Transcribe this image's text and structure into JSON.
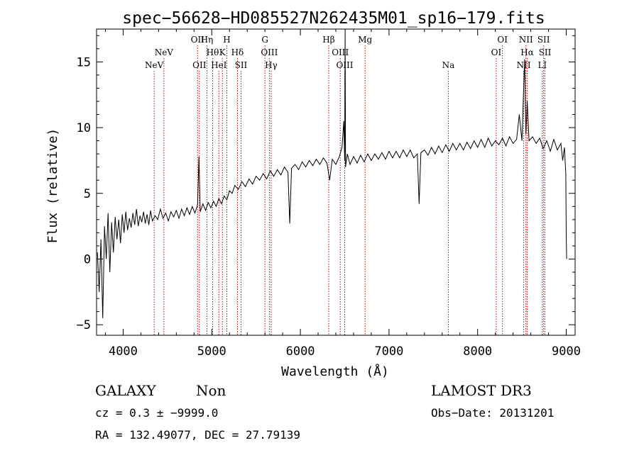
{
  "chart_data": {
    "type": "line",
    "title": "spec−56628−HD085527N262435M01_sp16−179.fits",
    "xlabel": "Wavelength (Å)",
    "ylabel": "Flux (relative)",
    "xlim": [
      3700,
      9100
    ],
    "ylim": [
      -5.8,
      17.5
    ],
    "x_ticks": [
      4000,
      5000,
      6000,
      7000,
      8000,
      9000
    ],
    "x_tick_labels": [
      "4000",
      "5000",
      "6000",
      "7000",
      "8000",
      "9000"
    ],
    "y_ticks": [
      -5,
      0,
      5,
      10,
      15
    ],
    "y_tick_labels": [
      "−5",
      "0",
      "5",
      "10",
      "15"
    ],
    "grid": false,
    "line_color": "#000000",
    "marker_color": "#cc0000",
    "series": [
      {
        "points": [
          [
            3710,
            0.5
          ],
          [
            3730,
            -2.5
          ],
          [
            3750,
            1.5
          ],
          [
            3770,
            -4.5
          ],
          [
            3790,
            2.5
          ],
          [
            3810,
            0.0
          ],
          [
            3830,
            3.5
          ],
          [
            3850,
            -1.0
          ],
          [
            3870,
            2.8
          ],
          [
            3890,
            0.5
          ],
          [
            3910,
            3.2
          ],
          [
            3930,
            1.5
          ],
          [
            3950,
            3.0
          ],
          [
            3970,
            1.2
          ],
          [
            3990,
            3.4
          ],
          [
            4010,
            2.0
          ],
          [
            4030,
            3.6
          ],
          [
            4050,
            2.2
          ],
          [
            4070,
            3.1
          ],
          [
            4090,
            2.4
          ],
          [
            4110,
            3.5
          ],
          [
            4130,
            2.6
          ],
          [
            4150,
            3.8
          ],
          [
            4170,
            2.5
          ],
          [
            4190,
            3.3
          ],
          [
            4210,
            2.8
          ],
          [
            4230,
            3.6
          ],
          [
            4250,
            2.7
          ],
          [
            4270,
            3.4
          ],
          [
            4290,
            2.6
          ],
          [
            4310,
            3.7
          ],
          [
            4330,
            2.9
          ],
          [
            4360,
            3.3
          ],
          [
            4390,
            3.0
          ],
          [
            4420,
            3.8
          ],
          [
            4450,
            3.1
          ],
          [
            4480,
            3.5
          ],
          [
            4510,
            2.9
          ],
          [
            4540,
            3.6
          ],
          [
            4570,
            3.2
          ],
          [
            4600,
            3.7
          ],
          [
            4630,
            3.1
          ],
          [
            4660,
            3.8
          ],
          [
            4690,
            3.3
          ],
          [
            4720,
            3.9
          ],
          [
            4750,
            3.4
          ],
          [
            4780,
            4.0
          ],
          [
            4810,
            3.5
          ],
          [
            4840,
            4.1
          ],
          [
            4855,
            7.8
          ],
          [
            4870,
            3.6
          ],
          [
            4900,
            4.2
          ],
          [
            4930,
            3.7
          ],
          [
            4960,
            4.3
          ],
          [
            4990,
            3.9
          ],
          [
            5020,
            4.4
          ],
          [
            5050,
            4.0
          ],
          [
            5080,
            4.6
          ],
          [
            5110,
            4.2
          ],
          [
            5140,
            4.8
          ],
          [
            5170,
            4.5
          ],
          [
            5200,
            5.2
          ],
          [
            5230,
            5.0
          ],
          [
            5260,
            5.6
          ],
          [
            5300,
            5.3
          ],
          [
            5340,
            5.9
          ],
          [
            5380,
            5.5
          ],
          [
            5420,
            6.1
          ],
          [
            5460,
            5.7
          ],
          [
            5500,
            6.3
          ],
          [
            5540,
            6.0
          ],
          [
            5580,
            6.5
          ],
          [
            5620,
            6.1
          ],
          [
            5660,
            6.7
          ],
          [
            5700,
            6.3
          ],
          [
            5740,
            6.8
          ],
          [
            5780,
            6.4
          ],
          [
            5820,
            7.0
          ],
          [
            5860,
            6.6
          ],
          [
            5880,
            2.7
          ],
          [
            5900,
            6.9
          ],
          [
            5940,
            7.2
          ],
          [
            5980,
            6.8
          ],
          [
            6020,
            7.4
          ],
          [
            6060,
            7.0
          ],
          [
            6100,
            7.5
          ],
          [
            6140,
            7.1
          ],
          [
            6180,
            7.6
          ],
          [
            6220,
            7.2
          ],
          [
            6260,
            7.7
          ],
          [
            6300,
            7.3
          ],
          [
            6330,
            6.0
          ],
          [
            6360,
            7.6
          ],
          [
            6400,
            7.2
          ],
          [
            6440,
            7.8
          ],
          [
            6470,
            8.5
          ],
          [
            6490,
            10.5
          ],
          [
            6500,
            7.5
          ],
          [
            6505,
            17.5
          ],
          [
            6510,
            7.0
          ],
          [
            6530,
            8.0
          ],
          [
            6560,
            7.2
          ],
          [
            6600,
            7.8
          ],
          [
            6640,
            7.3
          ],
          [
            6680,
            7.9
          ],
          [
            6720,
            7.4
          ],
          [
            6760,
            8.0
          ],
          [
            6800,
            7.5
          ],
          [
            6840,
            8.0
          ],
          [
            6880,
            7.6
          ],
          [
            6920,
            8.1
          ],
          [
            6960,
            7.6
          ],
          [
            7000,
            8.2
          ],
          [
            7040,
            7.7
          ],
          [
            7080,
            8.2
          ],
          [
            7120,
            7.7
          ],
          [
            7160,
            8.3
          ],
          [
            7200,
            7.8
          ],
          [
            7240,
            8.3
          ],
          [
            7280,
            7.7
          ],
          [
            7320,
            8.0
          ],
          [
            7340,
            4.2
          ],
          [
            7360,
            8.1
          ],
          [
            7400,
            8.3
          ],
          [
            7440,
            7.9
          ],
          [
            7480,
            8.5
          ],
          [
            7520,
            8.0
          ],
          [
            7560,
            8.6
          ],
          [
            7600,
            8.1
          ],
          [
            7640,
            8.7
          ],
          [
            7680,
            8.2
          ],
          [
            7720,
            8.8
          ],
          [
            7760,
            8.3
          ],
          [
            7800,
            8.8
          ],
          [
            7840,
            8.3
          ],
          [
            7880,
            8.9
          ],
          [
            7920,
            8.4
          ],
          [
            7960,
            9.0
          ],
          [
            8000,
            8.5
          ],
          [
            8040,
            9.1
          ],
          [
            8080,
            8.5
          ],
          [
            8120,
            9.2
          ],
          [
            8160,
            8.6
          ],
          [
            8200,
            9.0
          ],
          [
            8240,
            8.7
          ],
          [
            8280,
            9.2
          ],
          [
            8320,
            8.6
          ],
          [
            8360,
            9.3
          ],
          [
            8400,
            8.8
          ],
          [
            8440,
            9.1
          ],
          [
            8470,
            11.0
          ],
          [
            8500,
            9.0
          ],
          [
            8530,
            15.2
          ],
          [
            8545,
            9.5
          ],
          [
            8560,
            12.0
          ],
          [
            8580,
            9.0
          ],
          [
            8620,
            9.3
          ],
          [
            8660,
            8.8
          ],
          [
            8700,
            9.2
          ],
          [
            8740,
            8.4
          ],
          [
            8780,
            9.0
          ],
          [
            8820,
            8.2
          ],
          [
            8860,
            9.1
          ],
          [
            8900,
            8.3
          ],
          [
            8940,
            8.8
          ],
          [
            8960,
            7.5
          ],
          [
            8980,
            8.5
          ],
          [
            8995,
            6.5
          ],
          [
            9000,
            1.8
          ],
          [
            9005,
            0.0
          ]
        ]
      }
    ],
    "lines": [
      {
        "wavelength": 4350,
        "labels": [
          "NeV"
        ],
        "row": 3
      },
      {
        "wavelength": 4460,
        "labels": [
          "NeV"
        ],
        "row": 2
      },
      {
        "wavelength": 4840,
        "labels": [
          "OII"
        ],
        "row": 1
      },
      {
        "wavelength": 4860,
        "labels": [
          "OII"
        ],
        "row": 3
      },
      {
        "wavelength": 4945,
        "labels": [
          "Hη"
        ],
        "row": 1
      },
      {
        "wavelength": 5010,
        "labels": [
          "Hθ"
        ],
        "row": 2
      },
      {
        "wavelength": 5080,
        "labels": [
          "HeI"
        ],
        "row": 3
      },
      {
        "wavelength": 5120,
        "labels": [
          "K"
        ],
        "row": 2
      },
      {
        "wavelength": 5170,
        "labels": [
          "H"
        ],
        "row": 1
      },
      {
        "wavelength": 5290,
        "labels": [
          "Hδ"
        ],
        "row": 2
      },
      {
        "wavelength": 5330,
        "labels": [
          "SII"
        ],
        "row": 3
      },
      {
        "wavelength": 5600,
        "labels": [
          "G"
        ],
        "row": 1
      },
      {
        "wavelength": 5650,
        "labels": [
          "OIII"
        ],
        "row": 2
      },
      {
        "wavelength": 5670,
        "labels": [
          "Hγ"
        ],
        "row": 3
      },
      {
        "wavelength": 6320,
        "labels": [
          "Hβ"
        ],
        "row": 1
      },
      {
        "wavelength": 6450,
        "labels": [
          "OIII"
        ],
        "row": 2
      },
      {
        "wavelength": 6500,
        "labels": [
          "OIII"
        ],
        "row": 3
      },
      {
        "wavelength": 6730,
        "labels": [
          "Mg"
        ],
        "row": 1
      },
      {
        "wavelength": 7670,
        "labels": [
          "Na"
        ],
        "row": 3
      },
      {
        "wavelength": 8210,
        "labels": [
          "OI"
        ],
        "row": 2
      },
      {
        "wavelength": 8280,
        "labels": [
          "OI"
        ],
        "row": 1
      },
      {
        "wavelength": 8520,
        "labels": [
          "NII"
        ],
        "row": 3
      },
      {
        "wavelength": 8545,
        "labels": [
          "NII"
        ],
        "row": 1
      },
      {
        "wavelength": 8560,
        "labels": [
          "Hα"
        ],
        "row": 2
      },
      {
        "wavelength": 8730,
        "labels": [
          "LI"
        ],
        "row": 3
      },
      {
        "wavelength": 8745,
        "labels": [
          "SII"
        ],
        "row": 1
      },
      {
        "wavelength": 8760,
        "labels": [
          "SII"
        ],
        "row": 2
      }
    ]
  },
  "info": {
    "object_class": "GALAXY",
    "subclass": "Non",
    "survey": "LAMOST DR3",
    "cz": "cz = 0.3 ± −9999.0",
    "obs_date": "Obs−Date: 20131201",
    "coords": "RA = 132.49077, DEC =  27.79139"
  }
}
